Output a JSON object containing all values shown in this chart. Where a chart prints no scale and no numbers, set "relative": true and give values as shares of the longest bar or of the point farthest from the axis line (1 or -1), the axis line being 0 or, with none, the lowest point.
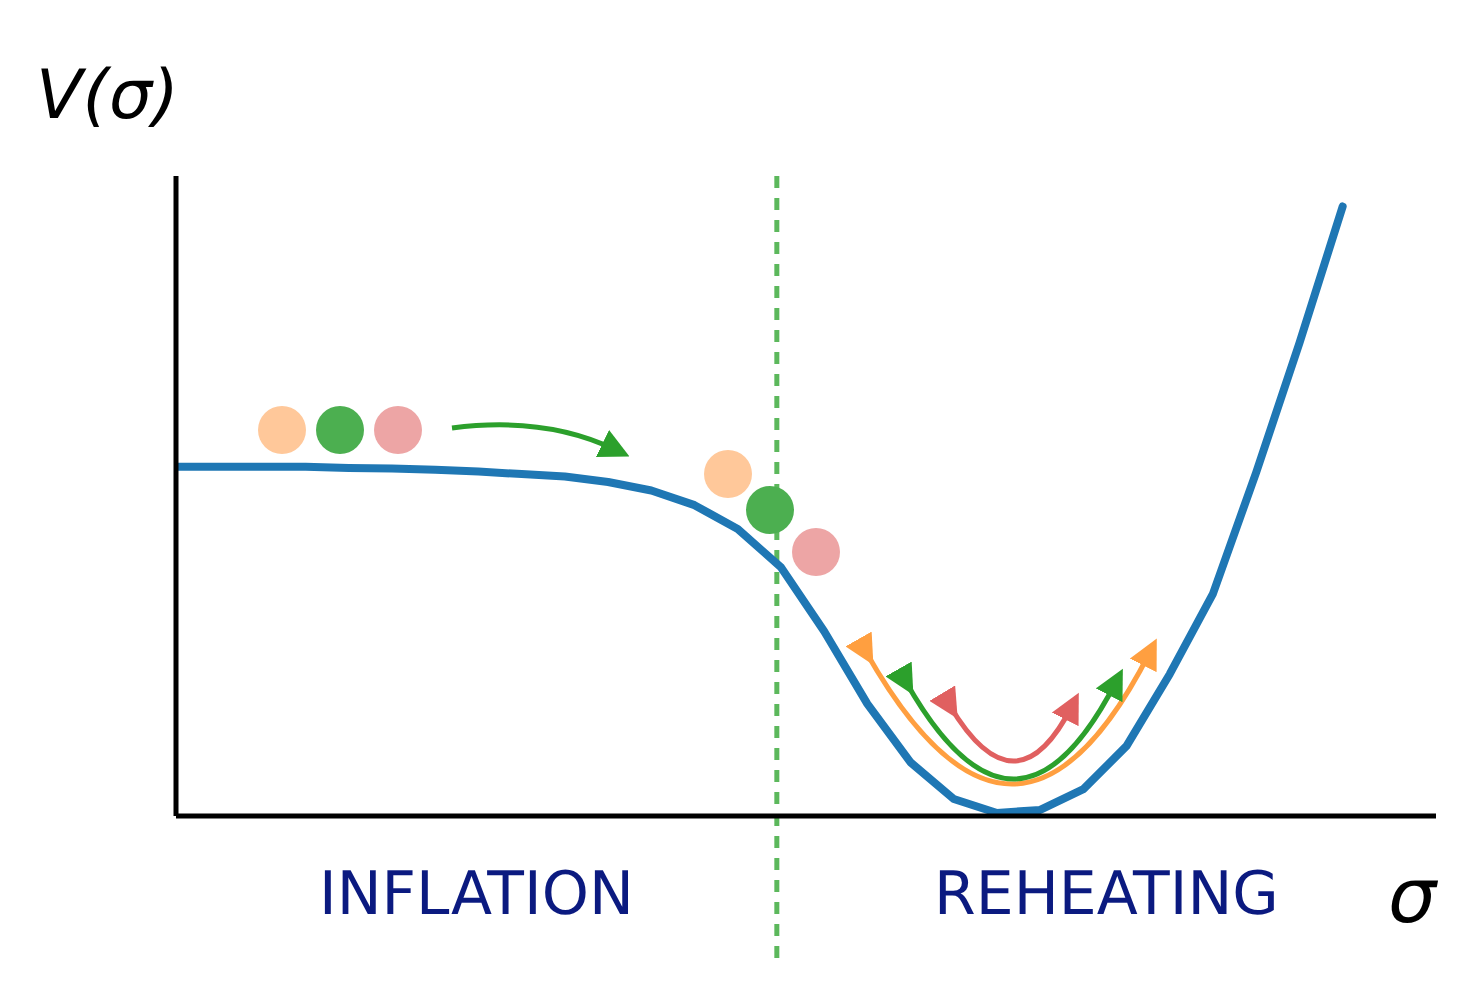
{
  "chart_data": {
    "type": "line",
    "relative": true,
    "ylabel": "V(σ)",
    "xlabel": "σ",
    "line_style": "solid",
    "marker": "none",
    "categories": [
      null,
      null,
      null,
      null,
      null,
      null,
      null,
      null,
      null,
      null,
      null,
      null,
      null,
      null,
      null,
      null,
      null,
      null,
      null,
      null,
      null,
      null,
      null,
      null,
      null,
      null,
      null,
      null
    ],
    "series": [
      {
        "color": "#1f77b4",
        "values": [
          0.573,
          0.573,
          0.573,
          0.573,
          0.571,
          0.57,
          0.568,
          0.565,
          0.561,
          0.557,
          0.548,
          0.534,
          0.51,
          0.471,
          0.408,
          0.303,
          0.184,
          0.088,
          0.028,
          0.005,
          0.01,
          0.044,
          0.115,
          0.233,
          0.365,
          0.564,
          0.776,
          1
        ]
      }
    ],
    "annotations": [
      "INFLATION",
      "REHEATING"
    ]
  }
}
